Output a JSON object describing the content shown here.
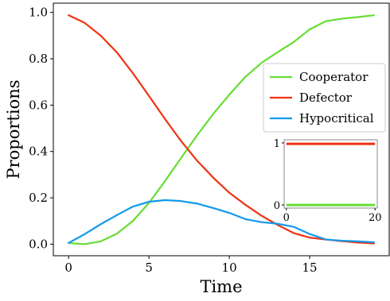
{
  "chart_data": [
    {
      "type": "line",
      "xlabel": "Time",
      "ylabel": "Proportions",
      "xlim": [
        -0.95,
        19.95
      ],
      "ylim": [
        -0.05,
        1.04
      ],
      "xticks": [
        0,
        5,
        10,
        15
      ],
      "xtick_labels": [
        "0",
        "5",
        "10",
        "15"
      ],
      "yticks": [
        0.0,
        0.2,
        0.4,
        0.6,
        0.8,
        1.0
      ],
      "ytick_labels": [
        "0.0",
        "0.2",
        "0.4",
        "0.6",
        "0.8",
        "1.0"
      ],
      "grid": false,
      "legend": "right",
      "x": [
        0,
        1,
        2,
        3,
        4,
        5,
        6,
        7,
        8,
        9,
        10,
        11,
        12,
        13,
        14,
        15,
        16,
        17,
        18,
        19
      ],
      "series": [
        {
          "name": "Cooperator",
          "color": "#66dd33",
          "values": [
            0.005,
            0.0,
            0.012,
            0.045,
            0.1,
            0.178,
            0.272,
            0.372,
            0.47,
            0.562,
            0.645,
            0.722,
            0.782,
            0.828,
            0.872,
            0.927,
            0.962,
            0.973,
            0.98,
            0.988
          ]
        },
        {
          "name": "Defector",
          "color": "#ee3311",
          "values": [
            0.988,
            0.955,
            0.9,
            0.828,
            0.738,
            0.64,
            0.54,
            0.445,
            0.36,
            0.287,
            0.222,
            0.17,
            0.123,
            0.083,
            0.048,
            0.028,
            0.02,
            0.013,
            0.007,
            0.003
          ]
        },
        {
          "name": "Hypocritical",
          "color": "#1199ee",
          "values": [
            0.005,
            0.043,
            0.086,
            0.125,
            0.162,
            0.183,
            0.19,
            0.186,
            0.175,
            0.156,
            0.135,
            0.108,
            0.095,
            0.088,
            0.075,
            0.044,
            0.02,
            0.015,
            0.012,
            0.008
          ]
        }
      ]
    },
    {
      "type": "line",
      "inset": true,
      "xlim": [
        -0.5,
        20.5
      ],
      "ylim": [
        -0.05,
        1.05
      ],
      "xticks": [
        0,
        20
      ],
      "xtick_labels": [
        "0",
        "20"
      ],
      "yticks": [
        0,
        1
      ],
      "ytick_labels": [
        "0",
        "1"
      ],
      "x": [
        0,
        20
      ],
      "series": [
        {
          "color": "#ee3311",
          "values": [
            0.985,
            0.985
          ]
        },
        {
          "color": "#66dd33",
          "values": [
            0.0,
            0.0
          ]
        }
      ]
    }
  ]
}
